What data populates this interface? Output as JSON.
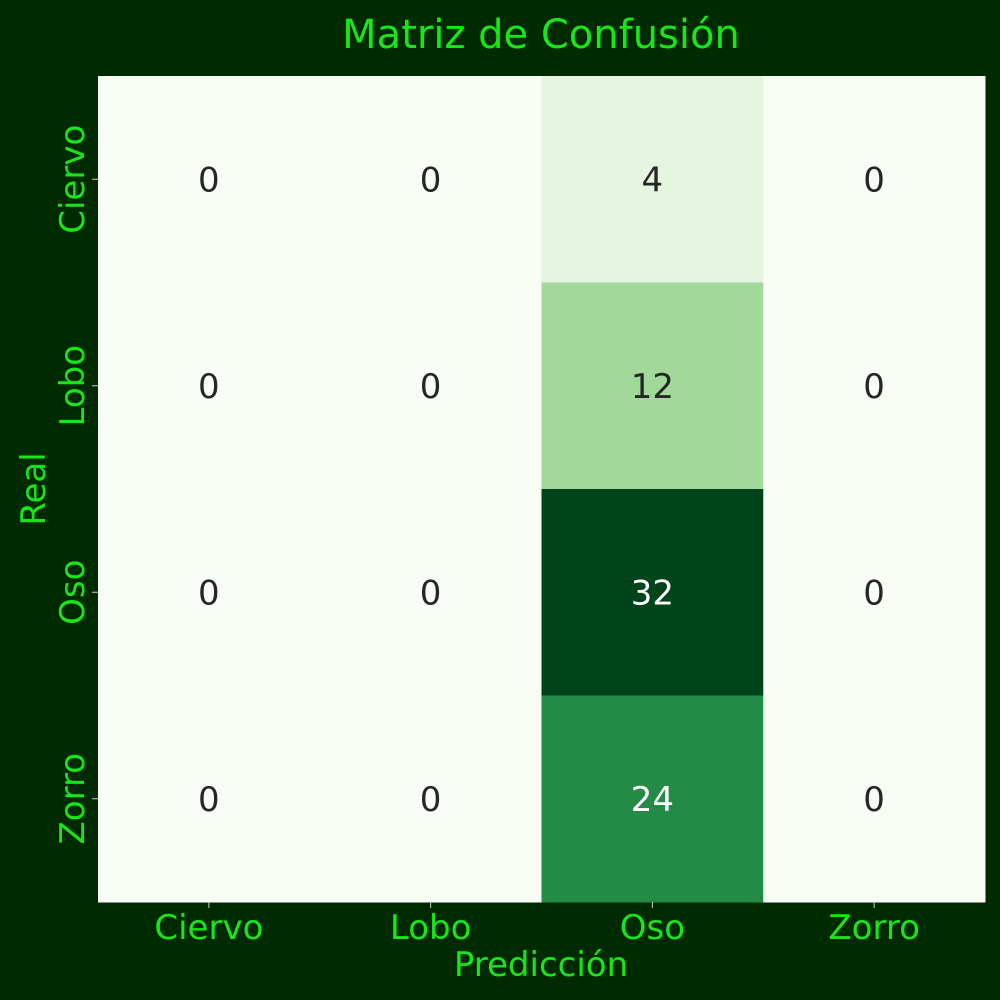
{
  "chart_data": {
    "type": "heatmap",
    "title": "Matriz de Confusión",
    "xlabel": "Predicción",
    "ylabel": "Real",
    "x_categories": [
      "Ciervo",
      "Lobo",
      "Oso",
      "Zorro"
    ],
    "y_categories": [
      "Ciervo",
      "Lobo",
      "Oso",
      "Zorro"
    ],
    "values": [
      [
        0,
        0,
        4,
        0
      ],
      [
        0,
        0,
        12,
        0
      ],
      [
        0,
        0,
        32,
        0
      ],
      [
        0,
        0,
        24,
        0
      ]
    ],
    "colormap": "Greens",
    "value_range": [
      0,
      32
    ],
    "colorbar": false
  },
  "colors": {
    "background": "#002a00",
    "text_accent": "#19e619",
    "cell_text_dark": "#262626",
    "cell_text_light": "#ffffff"
  }
}
